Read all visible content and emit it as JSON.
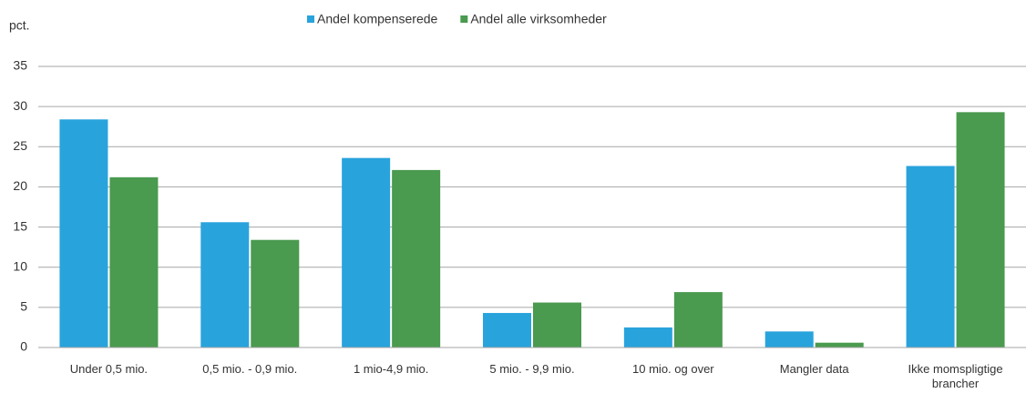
{
  "chart_data": {
    "type": "bar",
    "y_label": "pct.",
    "categories": [
      "Under 0,5 mio.",
      "0,5 mio. - 0,9 mio.",
      "1 mio-4,9 mio.",
      "5 mio. - 9,9 mio.",
      "10 mio. og over",
      "Mangler data",
      "Ikke momspligtige brancher"
    ],
    "series": [
      {
        "name": "Andel kompenserede",
        "color": "#29a3dc",
        "values": [
          28.4,
          15.6,
          23.6,
          4.3,
          2.5,
          2.0,
          22.6
        ]
      },
      {
        "name": "Andel alle virksomheder",
        "color": "#4a9a4f",
        "values": [
          21.2,
          13.4,
          22.1,
          5.6,
          6.9,
          0.6,
          29.3
        ]
      }
    ],
    "ylim": [
      0,
      35
    ],
    "yticks": [
      0,
      5,
      10,
      15,
      20,
      25,
      30,
      35
    ],
    "grid": true,
    "legend": "top"
  }
}
